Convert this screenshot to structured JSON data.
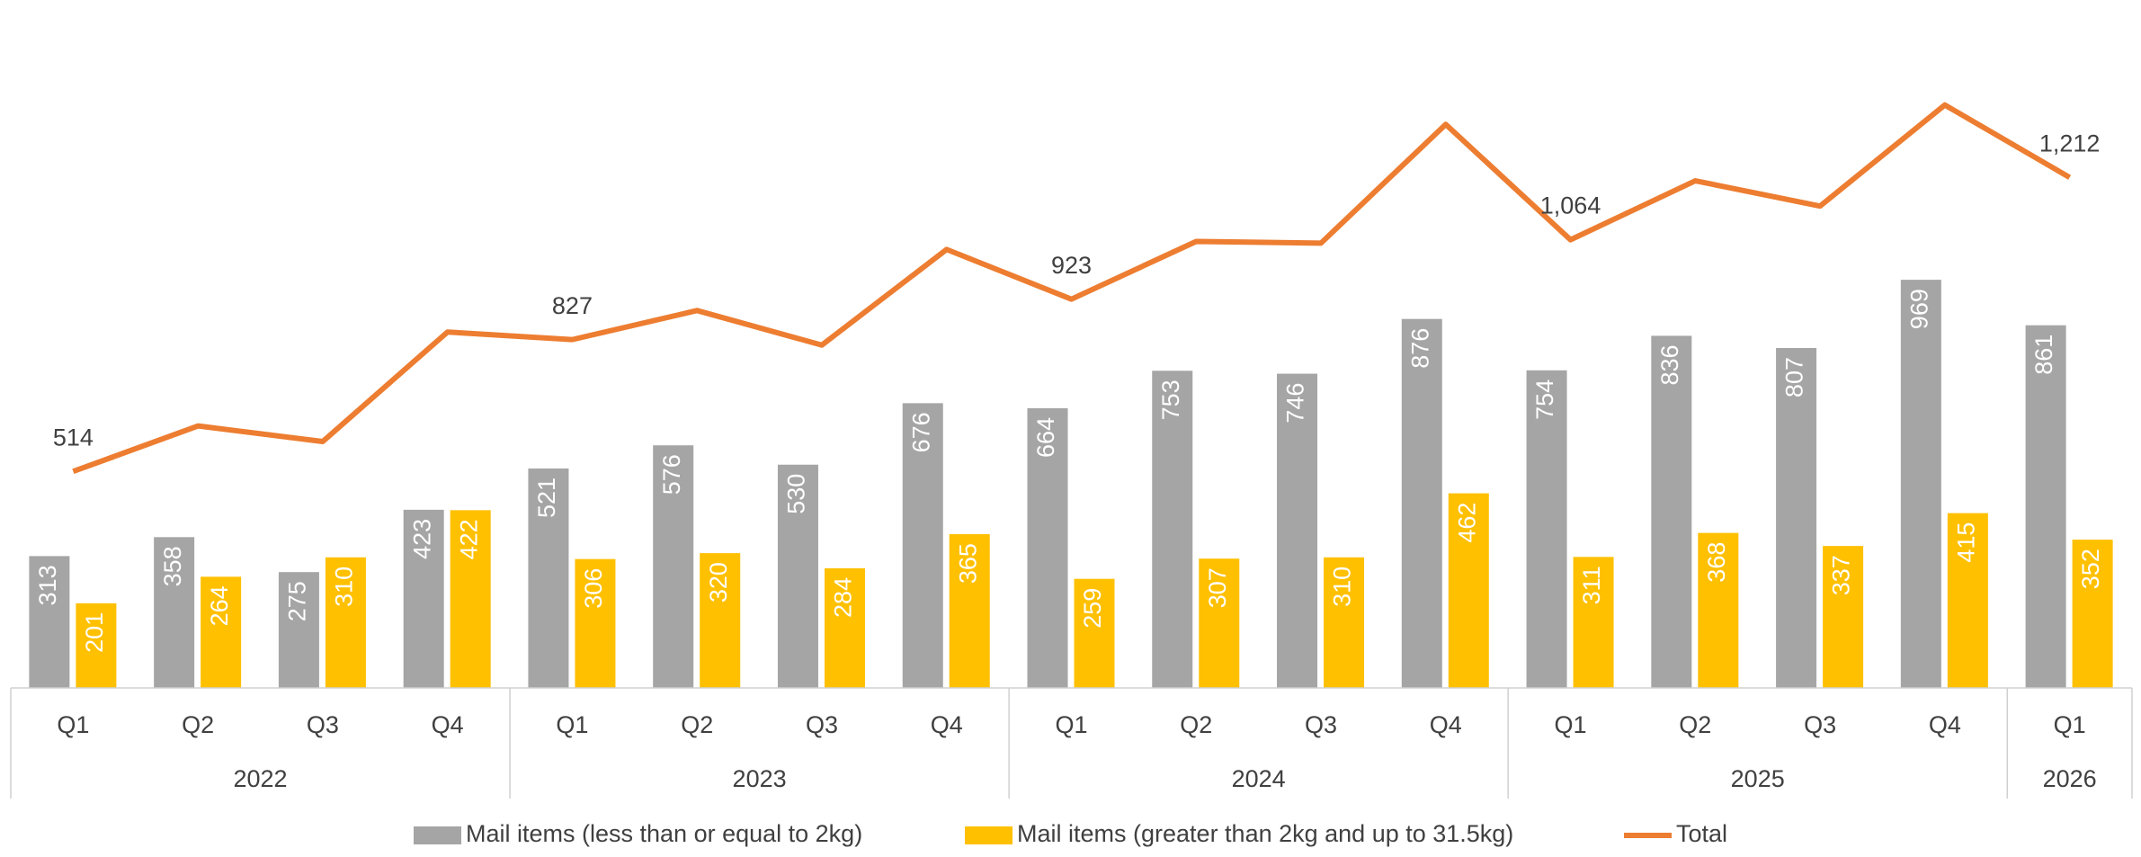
{
  "chart_data": {
    "type": "bar",
    "categories": [
      "Q1",
      "Q2",
      "Q3",
      "Q4",
      "Q1",
      "Q2",
      "Q3",
      "Q4",
      "Q1",
      "Q2",
      "Q3",
      "Q4",
      "Q1",
      "Q2",
      "Q3",
      "Q4",
      "Q1"
    ],
    "groups": [
      "2022",
      "2022",
      "2022",
      "2022",
      "2023",
      "2023",
      "2023",
      "2023",
      "2024",
      "2024",
      "2024",
      "2024",
      "2025",
      "2025",
      "2025",
      "2025",
      "2026"
    ],
    "series": [
      {
        "name": "Mail items (less than or equal to 2kg)",
        "color": "#a5a5a5",
        "type": "bar",
        "values": [
          313,
          358,
          275,
          423,
          521,
          576,
          530,
          676,
          664,
          753,
          746,
          876,
          754,
          836,
          807,
          969,
          861
        ]
      },
      {
        "name": "Mail items (greater than 2kg and up to 31.5kg)",
        "color": "#ffc000",
        "type": "bar",
        "values": [
          201,
          264,
          310,
          422,
          306,
          320,
          284,
          365,
          259,
          307,
          310,
          462,
          311,
          368,
          337,
          415,
          352
        ]
      },
      {
        "name": "Total",
        "color": "#ed7d31",
        "type": "line",
        "values": [
          514,
          622,
          585,
          845,
          827,
          896,
          814,
          1041,
          923,
          1060,
          1056,
          1338,
          1064,
          1204,
          1144,
          1384,
          1212
        ],
        "value_labels": [
          "514",
          null,
          null,
          null,
          "827",
          null,
          null,
          null,
          "923",
          null,
          null,
          null,
          "1,064",
          null,
          null,
          null,
          "1,212"
        ]
      }
    ]
  }
}
